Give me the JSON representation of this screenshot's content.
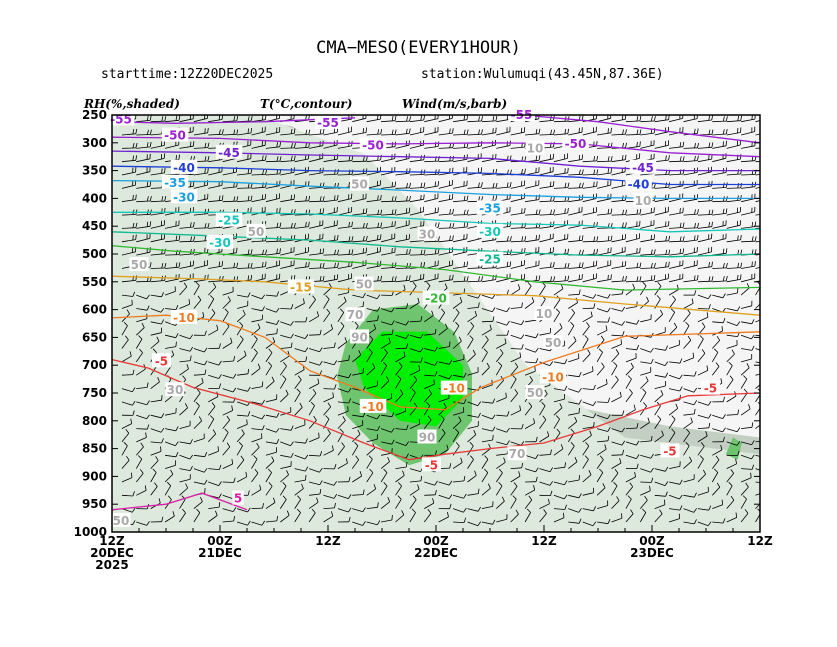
{
  "title": "CMA−MESO(EVERY1HOUR)",
  "starttime": "starttime:12Z20DEC2025",
  "station": "station:Wulumuqi(43.45N,87.36E)",
  "legend": {
    "rh": "RH(%,shaded)",
    "t": "T(°C,contour)",
    "wind": "Wind(m/s,barb)"
  },
  "colors": {
    "rh_low": "#f5f5f5",
    "rh_50": "#dce9dc",
    "rh_70": "#c2cfc2",
    "rh_90": "#6fc46f",
    "rh_95": "#00ee00",
    "t_m55": "#9b1fd4",
    "t_m50": "#9b1fd4",
    "t_m45": "#6f22d2",
    "t_m40": "#1f3fd8",
    "t_m35": "#1aa0e0",
    "t_m30": "#14c8b8",
    "t_m25": "#10b890",
    "t_m20": "#33b833",
    "t_m15": "#e0a020",
    "t_m10": "#f07a20",
    "t_m5": "#e83838",
    "t_5": "#d81ca8",
    "rh_contour": "#aaaaaa",
    "barb": "#000000"
  },
  "chart_data": {
    "type": "heatmap",
    "title": "CMA−MESO(EVERY1HOUR)",
    "xlabel": "",
    "ylabel": "",
    "x_ticks": [
      {
        "h": 0,
        "label": "12Z",
        "label2": "",
        "label3": ""
      },
      {
        "h": 12,
        "label": "00Z",
        "label2": "23DEC",
        "label3": ""
      },
      {
        "h": 24,
        "label": "12Z",
        "label2": "",
        "label3": ""
      },
      {
        "h": 36,
        "label": "00Z",
        "label2": "22DEC",
        "label3": ""
      },
      {
        "h": 48,
        "label": "12Z",
        "label2": "",
        "label3": ""
      },
      {
        "h": 60,
        "label": "00Z",
        "label2": "21DEC",
        "label3": ""
      },
      {
        "h": 72,
        "label": "12Z",
        "label2": "20DEC",
        "label3": "2025"
      }
    ],
    "x_range_hours": [
      0,
      72
    ],
    "y_levels": [
      250,
      300,
      350,
      400,
      450,
      500,
      550,
      600,
      650,
      700,
      750,
      800,
      850,
      900,
      950,
      1000
    ],
    "y_range_hpa": [
      250,
      1000
    ],
    "rh_regions": [
      {
        "level": 70,
        "points": [
          [
            0,
            830
          ],
          [
            10,
            810
          ],
          [
            25,
            760
          ],
          [
            30,
            680
          ],
          [
            35,
            560
          ],
          [
            40,
            450
          ],
          [
            45,
            350
          ],
          [
            52,
            270
          ],
          [
            62,
            250
          ],
          [
            72,
            260
          ],
          [
            72,
            1000
          ],
          [
            0,
            1000
          ]
        ]
      },
      {
        "level": 50,
        "points": [
          [
            0,
            860
          ],
          [
            15,
            830
          ],
          [
            26,
            700
          ],
          [
            32,
            560
          ],
          [
            38,
            420
          ],
          [
            44,
            320
          ],
          [
            56,
            250
          ],
          [
            72,
            250
          ],
          [
            72,
            1000
          ],
          [
            0,
            1000
          ]
        ]
      },
      {
        "level": 90,
        "points": [
          [
            32,
            715
          ],
          [
            34,
            640
          ],
          [
            38,
            590
          ],
          [
            43,
            600
          ],
          [
            46,
            660
          ],
          [
            47,
            720
          ],
          [
            46,
            790
          ],
          [
            43,
            840
          ],
          [
            39,
            880
          ],
          [
            35,
            860
          ],
          [
            32,
            800
          ]
        ]
      },
      {
        "level": 95,
        "points": [
          [
            33,
            700
          ],
          [
            37,
            640
          ],
          [
            42,
            640
          ],
          [
            45,
            690
          ],
          [
            44,
            740
          ],
          [
            40,
            800
          ],
          [
            36,
            810
          ],
          [
            33,
            760
          ]
        ]
      },
      {
        "level": 90,
        "points": [
          [
            2,
            840
          ],
          [
            3,
            830
          ],
          [
            3.8,
            860
          ],
          [
            2.5,
            870
          ]
        ]
      }
    ],
    "t_contours": [
      {
        "value": -55,
        "label": "-55",
        "points": [
          [
            0,
            300
          ],
          [
            10,
            280
          ],
          [
            18,
            262
          ],
          [
            25,
            252
          ]
        ]
      },
      {
        "value": -55,
        "label": "-55",
        "points": [
          [
            45,
            255
          ],
          [
            55,
            262
          ],
          [
            65,
            265
          ],
          [
            72,
            262
          ]
        ]
      },
      {
        "value": -50,
        "label": "-50",
        "points": [
          [
            0,
            325
          ],
          [
            10,
            318
          ],
          [
            20,
            302
          ],
          [
            30,
            300
          ],
          [
            40,
            302
          ],
          [
            50,
            300
          ],
          [
            60,
            292
          ],
          [
            72,
            290
          ]
        ]
      },
      {
        "value": -45,
        "label": "-45",
        "points": [
          [
            0,
            350
          ],
          [
            10,
            350
          ],
          [
            20,
            342
          ],
          [
            30,
            328
          ],
          [
            40,
            325
          ],
          [
            50,
            322
          ],
          [
            60,
            318
          ],
          [
            72,
            315
          ]
        ]
      },
      {
        "value": -40,
        "label": "-40",
        "points": [
          [
            0,
            375
          ],
          [
            10,
            375
          ],
          [
            20,
            362
          ],
          [
            30,
            355
          ],
          [
            40,
            352
          ],
          [
            50,
            350
          ],
          [
            60,
            345
          ],
          [
            72,
            342
          ]
        ]
      },
      {
        "value": -35,
        "label": "-35",
        "points": [
          [
            0,
            400
          ],
          [
            10,
            400
          ],
          [
            20,
            398
          ],
          [
            30,
            393
          ],
          [
            40,
            385
          ],
          [
            50,
            378
          ],
          [
            60,
            370
          ],
          [
            72,
            368
          ]
        ]
      },
      {
        "value": -30,
        "label": "-30",
        "points": [
          [
            0,
            455
          ],
          [
            10,
            460
          ],
          [
            20,
            448
          ],
          [
            30,
            445
          ],
          [
            40,
            435
          ],
          [
            50,
            428
          ],
          [
            60,
            425
          ],
          [
            72,
            425
          ]
        ]
      },
      {
        "value": -25,
        "label": "-25",
        "points": [
          [
            0,
            500
          ],
          [
            10,
            505
          ],
          [
            20,
            502
          ],
          [
            30,
            495
          ],
          [
            40,
            487
          ],
          [
            50,
            475
          ],
          [
            60,
            468
          ],
          [
            72,
            460
          ]
        ]
      },
      {
        "value": -20,
        "label": "-20",
        "points": [
          [
            0,
            560
          ],
          [
            15,
            565
          ],
          [
            25,
            550
          ],
          [
            35,
            528
          ],
          [
            45,
            515
          ],
          [
            55,
            505
          ],
          [
            65,
            495
          ],
          [
            72,
            485
          ]
        ]
      },
      {
        "value": -15,
        "label": "-15",
        "points": [
          [
            0,
            610
          ],
          [
            15,
            590
          ],
          [
            25,
            575
          ],
          [
            35,
            570
          ],
          [
            45,
            565
          ],
          [
            55,
            550
          ],
          [
            62,
            545
          ],
          [
            72,
            540
          ]
        ]
      },
      {
        "value": -10,
        "label": "-10",
        "points": [
          [
            0,
            640
          ],
          [
            15,
            648
          ],
          [
            24,
            695
          ],
          [
            31,
            740
          ],
          [
            35,
            780
          ],
          [
            40,
            775
          ],
          [
            45,
            740
          ],
          [
            50,
            710
          ],
          [
            55,
            650
          ],
          [
            60,
            620
          ],
          [
            66,
            610
          ],
          [
            72,
            615
          ]
        ]
      },
      {
        "value": -5,
        "label": "-5",
        "points": [
          [
            0,
            750
          ],
          [
            8,
            755
          ],
          [
            13,
            780
          ],
          [
            18,
            810
          ],
          [
            24,
            840
          ],
          [
            30,
            850
          ],
          [
            35,
            860
          ],
          [
            39,
            870
          ],
          [
            44,
            840
          ],
          [
            50,
            800
          ],
          [
            56,
            770
          ],
          [
            63,
            740
          ],
          [
            68,
            705
          ],
          [
            72,
            690
          ]
        ]
      },
      {
        "value": 5,
        "label": "5",
        "points": [
          [
            57,
            960
          ],
          [
            62,
            930
          ],
          [
            66,
            950
          ],
          [
            72,
            960
          ]
        ]
      }
    ],
    "contour_labels": [
      {
        "h": 26.5,
        "p": 250,
        "text": "-55",
        "color": "#9b1fd4"
      },
      {
        "h": 48,
        "p": 264,
        "text": "-55",
        "color": "#9b1fd4"
      },
      {
        "h": 71,
        "p": 258,
        "text": "-55",
        "color": "#9b1fd4"
      },
      {
        "h": 20.5,
        "p": 302,
        "text": "-50",
        "color": "#9b1fd4"
      },
      {
        "h": 43,
        "p": 305,
        "text": "-50",
        "color": "#9b1fd4"
      },
      {
        "h": 65,
        "p": 287,
        "text": "-50",
        "color": "#9b1fd4"
      },
      {
        "h": 13,
        "p": 345,
        "text": "-45",
        "color": "#6f22d2"
      },
      {
        "h": 59,
        "p": 318,
        "text": "-45",
        "color": "#6f22d2"
      },
      {
        "h": 13.5,
        "p": 375,
        "text": "-40",
        "color": "#1f3fd8"
      },
      {
        "h": 64,
        "p": 345,
        "text": "-40",
        "color": "#1f3fd8"
      },
      {
        "h": 65,
        "p": 372,
        "text": "-35",
        "color": "#1aa0e0"
      },
      {
        "h": 64,
        "p": 398,
        "text": "-30",
        "color": "#1aa0e0"
      },
      {
        "h": 30,
        "p": 418,
        "text": "-35",
        "color": "#1aa0e0"
      },
      {
        "h": 30,
        "p": 460,
        "text": "-30",
        "color": "#14c8b8"
      },
      {
        "h": 59,
        "p": 440,
        "text": "-25",
        "color": "#14c8b8"
      },
      {
        "h": 60,
        "p": 480,
        "text": "-30",
        "color": "#14c8b8"
      },
      {
        "h": 30,
        "p": 510,
        "text": "-25",
        "color": "#10b890"
      },
      {
        "h": 36,
        "p": 580,
        "text": "-20",
        "color": "#33b833"
      },
      {
        "h": 51,
        "p": 560,
        "text": "-15",
        "color": "#e0a020"
      },
      {
        "h": 64,
        "p": 615,
        "text": "-10",
        "color": "#f07a20"
      },
      {
        "h": 23,
        "p": 722,
        "text": "-10",
        "color": "#f07a20"
      },
      {
        "h": 34,
        "p": 742,
        "text": "-10",
        "color": "#f07a20"
      },
      {
        "h": 43,
        "p": 775,
        "text": "-10",
        "color": "#f07a20"
      },
      {
        "h": 5.5,
        "p": 742,
        "text": "-5",
        "color": "#e83838"
      },
      {
        "h": 10,
        "p": 855,
        "text": "-5",
        "color": "#e83838"
      },
      {
        "h": 36.5,
        "p": 880,
        "text": "-5",
        "color": "#e83838"
      },
      {
        "h": 66.5,
        "p": 693,
        "text": "-5",
        "color": "#e83838"
      },
      {
        "h": 58,
        "p": 940,
        "text": "5",
        "color": "#d81ca8"
      },
      {
        "h": 25,
        "p": 310,
        "text": "10",
        "color": "#aaaaaa"
      },
      {
        "h": 13,
        "p": 405,
        "text": "10",
        "color": "#aaaaaa"
      },
      {
        "h": 44.5,
        "p": 375,
        "text": "50",
        "color": "#aaaaaa"
      },
      {
        "h": 56,
        "p": 460,
        "text": "50",
        "color": "#aaaaaa"
      },
      {
        "h": 69,
        "p": 520,
        "text": "50",
        "color": "#aaaaaa"
      },
      {
        "h": 37,
        "p": 465,
        "text": "30",
        "color": "#aaaaaa"
      },
      {
        "h": 44,
        "p": 555,
        "text": "50",
        "color": "#aaaaaa"
      },
      {
        "h": 45,
        "p": 610,
        "text": "70",
        "color": "#aaaaaa"
      },
      {
        "h": 24,
        "p": 608,
        "text": "10",
        "color": "#aaaaaa"
      },
      {
        "h": 23,
        "p": 660,
        "text": "50",
        "color": "#aaaaaa"
      },
      {
        "h": 25,
        "p": 750,
        "text": "50",
        "color": "#aaaaaa"
      },
      {
        "h": 44.5,
        "p": 650,
        "text": "90",
        "color": "#aaaaaa"
      },
      {
        "h": 37,
        "p": 830,
        "text": "90",
        "color": "#aaaaaa"
      },
      {
        "h": 27,
        "p": 860,
        "text": "70",
        "color": "#aaaaaa"
      },
      {
        "h": 65,
        "p": 745,
        "text": "30",
        "color": "#aaaaaa"
      },
      {
        "h": 71,
        "p": 980,
        "text": "50",
        "color": "#aaaaaa"
      }
    ]
  }
}
